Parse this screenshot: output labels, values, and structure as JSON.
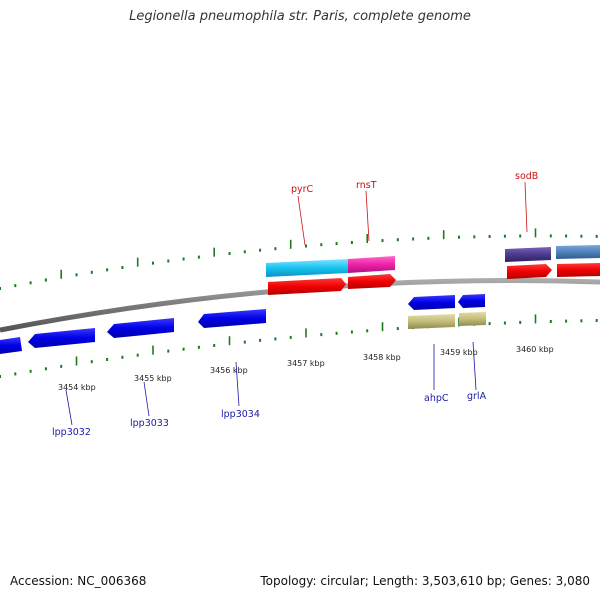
{
  "title": "Legionella pneumophila str. Paris, complete genome",
  "accession": "Accession: NC_006368",
  "summary": "Topology: circular; Length: 3,503,610 bp; Genes: 3,080",
  "colors": {
    "backbone": "#777777",
    "tick": "#1e7a1e",
    "forward_label": "#cc1111",
    "reverse_label": "#1a1aa8"
  },
  "scale_labels": [
    "3454 kbp",
    "3455 kbp",
    "3456 kbp",
    "3457 kbp",
    "3458 kbp",
    "3459 kbp",
    "3460 kbp"
  ],
  "gene_labels": {
    "pyrC": "pyrC",
    "rnsT": "rnsT",
    "sodB": "sodB",
    "ahpC": "ahpC",
    "grlA": "grlA",
    "lpp3032": "lpp3032",
    "lpp3033": "lpp3033",
    "lpp3034": "lpp3034"
  }
}
